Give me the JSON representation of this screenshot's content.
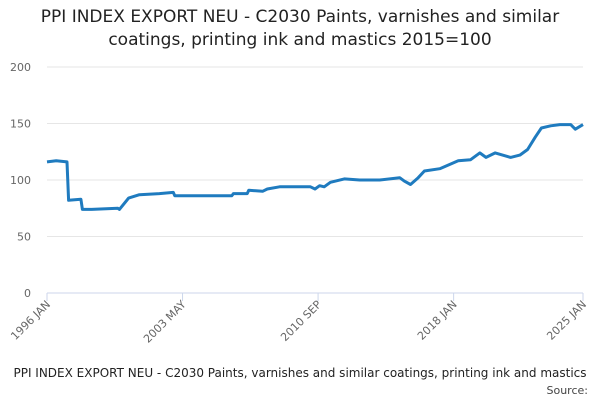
{
  "chart_data": {
    "type": "line",
    "title": "PPI INDEX EXPORT NEU - C2030 Paints, varnishes and similar coatings, printing ink and mastics 2015=100",
    "source": "Source:",
    "x": [
      "1996-01",
      "1996-07",
      "1997-02",
      "1997-03",
      "1997-11",
      "1997-12",
      "1998-06",
      "1999-11",
      "1999-12",
      "2000-06",
      "2001-01",
      "2002-02",
      "2002-11",
      "2002-12",
      "2006-01",
      "2006-02",
      "2006-11",
      "2006-12",
      "2007-09",
      "2007-12",
      "2008-08",
      "2010-04",
      "2010-07",
      "2010-10",
      "2011-01",
      "2011-05",
      "2012-02",
      "2012-12",
      "2014-01",
      "2015-02",
      "2015-05",
      "2015-09",
      "2016-02",
      "2016-06",
      "2017-04",
      "2018-04",
      "2018-12",
      "2019-06",
      "2019-10",
      "2020-04",
      "2021-02",
      "2021-08",
      "2022-01",
      "2022-06",
      "2022-10",
      "2023-04",
      "2023-10",
      "2024-05",
      "2024-08",
      "2025-01"
    ],
    "series": [
      {
        "name": "PPI INDEX EXPORT NEU - C2030 Paints, varnishes and similar coatings, printing ink and mastics",
        "color": "#1f7bbf",
        "values": [
          116,
          117,
          116,
          82,
          83,
          74,
          74,
          75,
          74,
          84,
          87,
          88,
          89,
          86,
          86,
          88,
          88,
          91,
          90,
          92,
          94,
          94,
          92,
          95,
          94,
          98,
          101,
          100,
          100,
          102,
          99,
          96,
          102,
          108,
          110,
          117,
          118,
          124,
          120,
          124,
          120,
          122,
          127,
          138,
          146,
          148,
          149,
          149,
          145,
          149
        ]
      }
    ],
    "xlim": [
      "1996-01",
      "2025-01"
    ],
    "xticks": [
      {
        "value": "1996-01",
        "label": "1996 JAN"
      },
      {
        "value": "2003-05",
        "label": "2003 MAY"
      },
      {
        "value": "2010-09",
        "label": "2010 SEP"
      },
      {
        "value": "2018-01",
        "label": "2018 JAN"
      },
      {
        "value": "2025-01",
        "label": "2025 JAN"
      }
    ],
    "ylim": [
      0,
      200
    ],
    "yticks": [
      0,
      50,
      100,
      150,
      200
    ],
    "grid": true
  }
}
